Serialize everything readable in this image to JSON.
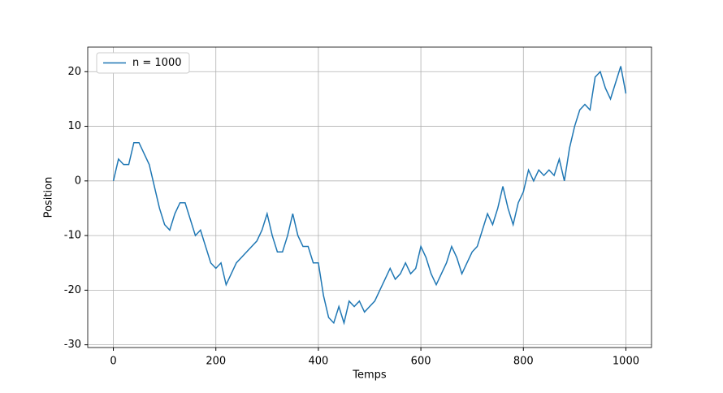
{
  "chart_data": {
    "type": "line",
    "x": [
      0,
      10,
      20,
      30,
      40,
      50,
      60,
      70,
      80,
      90,
      100,
      110,
      120,
      130,
      140,
      150,
      160,
      170,
      180,
      190,
      200,
      210,
      220,
      230,
      240,
      250,
      260,
      270,
      280,
      290,
      300,
      310,
      320,
      330,
      340,
      350,
      360,
      370,
      380,
      390,
      400,
      410,
      420,
      430,
      440,
      450,
      460,
      470,
      480,
      490,
      500,
      510,
      520,
      530,
      540,
      550,
      560,
      570,
      580,
      590,
      600,
      610,
      620,
      630,
      640,
      650,
      660,
      670,
      680,
      690,
      700,
      710,
      720,
      730,
      740,
      750,
      760,
      770,
      780,
      790,
      800,
      810,
      820,
      830,
      840,
      850,
      860,
      870,
      880,
      890,
      900,
      910,
      920,
      930,
      940,
      950,
      960,
      970,
      980,
      990,
      1000
    ],
    "series": [
      {
        "name": "n = 1000",
        "color": "#1f77b4",
        "values": [
          0,
          4,
          3,
          3,
          7,
          7,
          5,
          3,
          -1,
          -5,
          -8,
          -9,
          -6,
          -4,
          -4,
          -7,
          -10,
          -9,
          -12,
          -15,
          -16,
          -15,
          -19,
          -17,
          -15,
          -14,
          -13,
          -12,
          -11,
          -9,
          -6,
          -10,
          -13,
          -13,
          -10,
          -6,
          -10,
          -12,
          -12,
          -15,
          -15,
          -21,
          -25,
          -26,
          -23,
          -26,
          -22,
          -23,
          -22,
          -24,
          -23,
          -22,
          -20,
          -18,
          -16,
          -18,
          -17,
          -15,
          -17,
          -16,
          -12,
          -14,
          -17,
          -19,
          -17,
          -15,
          -12,
          -14,
          -17,
          -15,
          -13,
          -12,
          -9,
          -6,
          -8,
          -5,
          -1,
          -5,
          -8,
          -4,
          -2,
          2,
          0,
          2,
          1,
          2,
          1,
          4,
          0,
          6,
          10,
          13,
          14,
          13,
          19,
          20,
          17,
          15,
          18,
          21,
          16
        ]
      }
    ],
    "xlabel": "Temps",
    "ylabel": "Position",
    "xlim": [
      -50,
      1050
    ],
    "ylim": [
      -30.5,
      24.5
    ],
    "xticks": [
      0,
      200,
      400,
      600,
      800,
      1000
    ],
    "yticks": [
      -30,
      -20,
      -10,
      0,
      10,
      20
    ],
    "grid": true,
    "legend": "upper left"
  }
}
